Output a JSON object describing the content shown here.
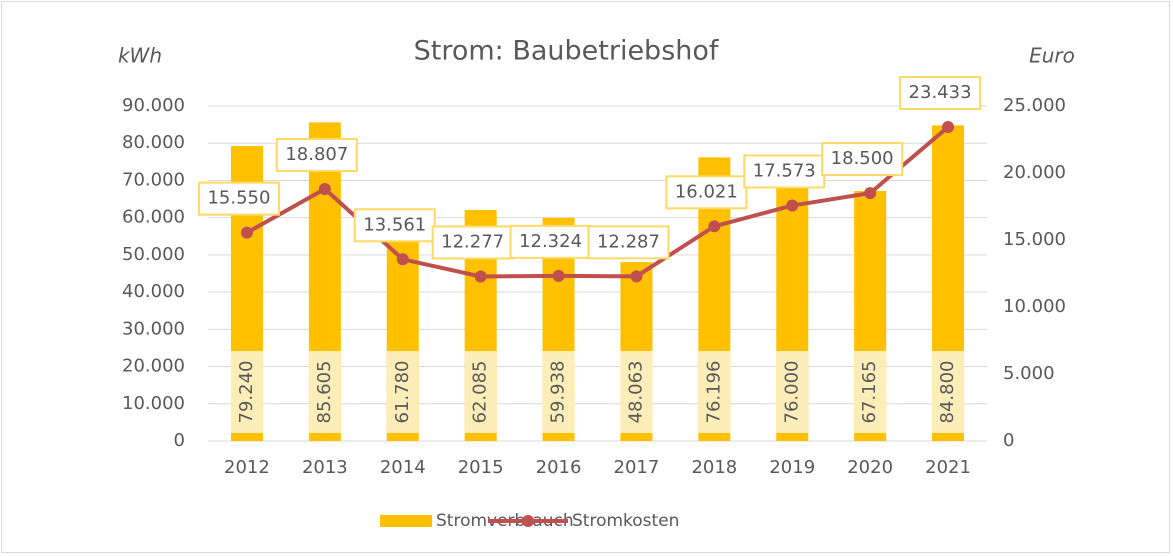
{
  "chart_data": {
    "type": "bar",
    "title": "Strom: Baubetriebshof",
    "ylabel": "kWh",
    "y2label": "Euro",
    "categories": [
      "2012",
      "2013",
      "2014",
      "2015",
      "2016",
      "2017",
      "2018",
      "2019",
      "2020",
      "2021"
    ],
    "series": [
      {
        "name": "Stromverbrauch",
        "type": "bar",
        "color": "#ffc000",
        "values": [
          79240,
          85605,
          61780,
          62085,
          59938,
          48063,
          76196,
          76000,
          67165,
          84800
        ],
        "value_labels": [
          "79.240",
          "85.605",
          "61.780",
          "62.085",
          "59.938",
          "48.063",
          "76.196",
          "76.000",
          "67.165",
          "84.800"
        ]
      },
      {
        "name": "Stromkosten",
        "type": "line",
        "axis": "y2",
        "color": "#c0504d",
        "values": [
          15550,
          18807,
          13561,
          12277,
          12324,
          12287,
          16021,
          17573,
          18500,
          23433
        ],
        "value_labels": [
          "15.550",
          "18.807",
          "13.561",
          "12.277",
          "12.324",
          "12.287",
          "16.021",
          "17.573",
          "18.500",
          "23.433"
        ]
      }
    ],
    "ylim": [
      0,
      90000
    ],
    "yticks": [
      0,
      {
        "value": 10000,
        "label": "10.000"
      },
      {
        "value": 20000,
        "label": "20.000"
      },
      {
        "value": 30000,
        "label": "30.000"
      },
      {
        "value": 40000,
        "label": "40.000"
      },
      {
        "value": 50000,
        "label": "50.000"
      },
      {
        "value": 60000,
        "label": "60.000"
      },
      {
        "value": 70000,
        "label": "70.000"
      },
      {
        "value": 80000,
        "label": "80.000"
      },
      {
        "value": 90000,
        "label": "90.000"
      }
    ],
    "y2lim": [
      0,
      25000
    ],
    "y2ticks": [
      0,
      {
        "value": 5000,
        "label": "5.000"
      },
      {
        "value": 10000,
        "label": "10.000"
      },
      {
        "value": 15000,
        "label": "15.000"
      },
      {
        "value": 20000,
        "label": "20.000"
      },
      {
        "value": 25000,
        "label": "25.000"
      }
    ],
    "grid": true,
    "legend": "bottom"
  }
}
